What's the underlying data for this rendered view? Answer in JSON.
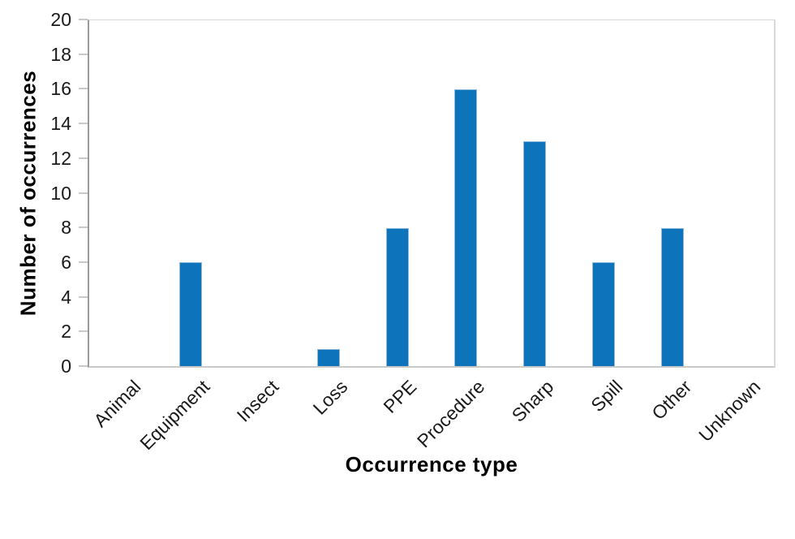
{
  "chart_data": {
    "type": "bar",
    "title": "",
    "categories": [
      "Animal",
      "Equipment",
      "Insect",
      "Loss",
      "PPE",
      "Procedure",
      "Sharp",
      "Spill",
      "Other",
      "Unknown"
    ],
    "values": [
      0,
      6,
      0,
      1,
      8,
      16,
      13,
      6,
      8,
      0
    ],
    "xlabel": "Occurrence type",
    "ylabel": "Number of occurrences",
    "ylim": [
      0,
      20
    ],
    "yticks": [
      0,
      2,
      4,
      6,
      8,
      10,
      12,
      14,
      16,
      18,
      20
    ],
    "grid": false,
    "legend": "none",
    "bar_color": "#0d73ba",
    "bar_border_color": "#8fbade",
    "axis_line_color": "#9a9a9a",
    "plot_border_color": "#d9d9d9",
    "tick_mark_color": "#c9c9c9",
    "text_color": "#1a1a1a"
  }
}
